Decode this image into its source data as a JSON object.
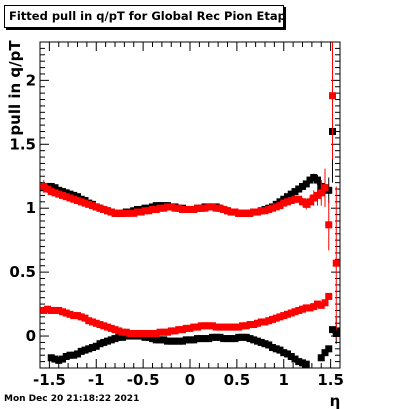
{
  "title": "Fitted pull in q/pT for Global Rec Pion EtapT",
  "timestamp": "Mon Dec 20 21:18:22 2021",
  "colors": {
    "black_series": "#000000",
    "red_series": "#ff0000"
  },
  "chart_data": {
    "type": "scatter",
    "title": "Fitted pull in q/pT for Global Rec Pion EtapT",
    "xlabel": "η",
    "ylabel": "pull in q/pT",
    "xlim": [
      -1.6,
      1.6
    ],
    "ylim": [
      -0.25,
      2.3
    ],
    "grid": false,
    "x_ticks": [
      "-1.5",
      "-1",
      "-0.5",
      "0",
      "0.5",
      "1",
      "1.5"
    ],
    "x_tick_values": [
      -1.5,
      -1,
      -0.5,
      0,
      0.5,
      1,
      1.5
    ],
    "y_ticks": [
      "0",
      "0.5",
      "1",
      "1.5",
      "2"
    ],
    "y_tick_values": [
      0,
      0.5,
      1,
      1.5,
      2
    ],
    "series": [
      {
        "role": "mean",
        "color": "#000000",
        "x": [
          -1.56,
          -1.52,
          -1.48,
          -1.44,
          -1.4,
          -1.36,
          -1.32,
          -1.28,
          -1.24,
          -1.2,
          -1.16,
          -1.12,
          -1.08,
          -1.04,
          -1.0,
          -0.96,
          -0.92,
          -0.88,
          -0.84,
          -0.8,
          -0.76,
          -0.72,
          -0.68,
          -0.64,
          -0.6,
          -0.56,
          -0.52,
          -0.48,
          -0.44,
          -0.4,
          -0.36,
          -0.32,
          -0.28,
          -0.24,
          -0.2,
          -0.16,
          -0.12,
          -0.08,
          -0.04,
          0.0,
          0.04,
          0.08,
          0.12,
          0.16,
          0.2,
          0.24,
          0.28,
          0.32,
          0.36,
          0.4,
          0.44,
          0.48,
          0.52,
          0.56,
          0.6,
          0.64,
          0.68,
          0.72,
          0.76,
          0.8,
          0.84,
          0.88,
          0.92,
          0.96,
          1.0,
          1.04,
          1.08,
          1.12,
          1.16,
          1.2,
          1.24,
          1.28,
          1.32,
          1.36,
          1.4,
          1.44,
          1.48,
          1.52,
          1.56
        ],
        "y": [
          1.16,
          1.17,
          1.17,
          1.16,
          1.14,
          1.13,
          1.12,
          1.11,
          1.1,
          1.09,
          1.07,
          1.06,
          1.04,
          1.03,
          1.01,
          1.0,
          0.99,
          0.98,
          0.97,
          0.96,
          0.96,
          0.96,
          0.97,
          0.97,
          0.98,
          0.99,
          0.99,
          1.0,
          1.0,
          1.01,
          1.02,
          1.02,
          1.02,
          1.02,
          1.01,
          1.01,
          1.0,
          1.0,
          0.99,
          0.99,
          0.99,
          1.0,
          1.0,
          1.01,
          1.01,
          1.01,
          1.01,
          1.0,
          0.99,
          0.98,
          0.97,
          0.97,
          0.96,
          0.96,
          0.96,
          0.96,
          0.97,
          0.97,
          0.98,
          0.99,
          1.0,
          1.01,
          1.03,
          1.05,
          1.07,
          1.09,
          1.11,
          1.13,
          1.15,
          1.17,
          1.19,
          1.22,
          1.24,
          1.22,
          1.17,
          1.16,
          1.14,
          1.6,
          0.04
        ],
        "err": [
          0.03,
          0.02,
          0.02,
          0.01,
          0.01,
          0.01,
          0.01,
          0.01,
          0.01,
          0.01,
          0.01,
          0.01,
          0.01,
          0.01,
          0.01,
          0.01,
          0.01,
          0.01,
          0.01,
          0.01,
          0.01,
          0.01,
          0.01,
          0.01,
          0.01,
          0.01,
          0.01,
          0.01,
          0.01,
          0.01,
          0.01,
          0.01,
          0.01,
          0.01,
          0.01,
          0.01,
          0.01,
          0.01,
          0.01,
          0.01,
          0.01,
          0.01,
          0.01,
          0.01,
          0.01,
          0.01,
          0.01,
          0.01,
          0.01,
          0.01,
          0.01,
          0.01,
          0.01,
          0.01,
          0.01,
          0.01,
          0.01,
          0.01,
          0.01,
          0.01,
          0.01,
          0.01,
          0.01,
          0.01,
          0.01,
          0.01,
          0.01,
          0.01,
          0.01,
          0.01,
          0.01,
          0.02,
          0.03,
          0.04,
          0.05,
          0.06,
          0.1,
          0.4,
          0.1
        ]
      },
      {
        "role": "mean",
        "color": "#ff0000",
        "x": [
          -1.56,
          -1.52,
          -1.48,
          -1.44,
          -1.4,
          -1.36,
          -1.32,
          -1.28,
          -1.24,
          -1.2,
          -1.16,
          -1.12,
          -1.08,
          -1.04,
          -1.0,
          -0.96,
          -0.92,
          -0.88,
          -0.84,
          -0.8,
          -0.76,
          -0.72,
          -0.68,
          -0.64,
          -0.6,
          -0.56,
          -0.52,
          -0.48,
          -0.44,
          -0.4,
          -0.36,
          -0.32,
          -0.28,
          -0.24,
          -0.2,
          -0.16,
          -0.12,
          -0.08,
          -0.04,
          0.0,
          0.04,
          0.08,
          0.12,
          0.16,
          0.2,
          0.24,
          0.28,
          0.32,
          0.36,
          0.4,
          0.44,
          0.48,
          0.52,
          0.56,
          0.6,
          0.64,
          0.68,
          0.72,
          0.76,
          0.8,
          0.84,
          0.88,
          0.92,
          0.96,
          1.0,
          1.04,
          1.08,
          1.12,
          1.16,
          1.2,
          1.24,
          1.28,
          1.32,
          1.36,
          1.4,
          1.44,
          1.48,
          1.52,
          1.56
        ],
        "y": [
          1.17,
          1.15,
          1.13,
          1.12,
          1.11,
          1.1,
          1.09,
          1.08,
          1.07,
          1.06,
          1.05,
          1.04,
          1.03,
          1.02,
          1.01,
          1.0,
          0.99,
          0.98,
          0.97,
          0.96,
          0.96,
          0.96,
          0.96,
          0.96,
          0.96,
          0.97,
          0.97,
          0.98,
          0.98,
          0.99,
          0.99,
          1.0,
          1.0,
          1.01,
          1.01,
          1.0,
          1.0,
          0.99,
          0.99,
          0.99,
          0.99,
          1.0,
          1.0,
          1.0,
          1.01,
          1.01,
          1.0,
          1.0,
          0.99,
          0.98,
          0.97,
          0.97,
          0.96,
          0.96,
          0.96,
          0.96,
          0.97,
          0.97,
          0.98,
          0.98,
          0.99,
          1.0,
          1.01,
          1.02,
          1.04,
          1.05,
          1.06,
          1.07,
          1.07,
          1.05,
          1.03,
          1.05,
          1.08,
          1.1,
          1.12,
          1.16,
          0.87,
          1.88,
          0.57
        ],
        "err": [
          0.05,
          0.03,
          0.02,
          0.02,
          0.01,
          0.01,
          0.01,
          0.01,
          0.01,
          0.01,
          0.01,
          0.01,
          0.01,
          0.01,
          0.01,
          0.01,
          0.01,
          0.01,
          0.01,
          0.01,
          0.01,
          0.01,
          0.01,
          0.01,
          0.01,
          0.01,
          0.01,
          0.01,
          0.01,
          0.01,
          0.01,
          0.01,
          0.01,
          0.01,
          0.01,
          0.01,
          0.01,
          0.01,
          0.01,
          0.01,
          0.01,
          0.01,
          0.01,
          0.01,
          0.01,
          0.01,
          0.01,
          0.01,
          0.01,
          0.01,
          0.01,
          0.01,
          0.01,
          0.01,
          0.01,
          0.01,
          0.01,
          0.01,
          0.01,
          0.01,
          0.01,
          0.01,
          0.01,
          0.01,
          0.01,
          0.01,
          0.02,
          0.02,
          0.02,
          0.03,
          0.04,
          0.05,
          0.06,
          0.08,
          0.1,
          0.15,
          0.2,
          0.5,
          0.6
        ]
      },
      {
        "role": "width",
        "color": "#000000",
        "x": [
          -1.48,
          -1.44,
          -1.4,
          -1.36,
          -1.32,
          -1.28,
          -1.24,
          -1.2,
          -1.16,
          -1.12,
          -1.08,
          -1.04,
          -1.0,
          -0.96,
          -0.92,
          -0.88,
          -0.84,
          -0.8,
          -0.76,
          -0.72,
          -0.68,
          -0.64,
          -0.6,
          -0.56,
          -0.52,
          -0.48,
          -0.44,
          -0.4,
          -0.36,
          -0.32,
          -0.28,
          -0.24,
          -0.2,
          -0.16,
          -0.12,
          -0.08,
          -0.04,
          0.0,
          0.04,
          0.08,
          0.12,
          0.16,
          0.2,
          0.24,
          0.28,
          0.32,
          0.36,
          0.4,
          0.44,
          0.48,
          0.52,
          0.56,
          0.6,
          0.64,
          0.68,
          0.72,
          0.76,
          0.8,
          0.84,
          0.88,
          0.92,
          0.96,
          1.0,
          1.04,
          1.08,
          1.12,
          1.16,
          1.2,
          1.24,
          1.4,
          1.44,
          1.48,
          1.52,
          1.56
        ],
        "y": [
          -0.17,
          -0.18,
          -0.19,
          -0.18,
          -0.16,
          -0.15,
          -0.15,
          -0.14,
          -0.12,
          -0.11,
          -0.1,
          -0.09,
          -0.08,
          -0.06,
          -0.05,
          -0.04,
          -0.03,
          -0.02,
          -0.01,
          -0.01,
          0.0,
          0.0,
          0.0,
          0.0,
          0.0,
          -0.01,
          -0.01,
          -0.02,
          -0.03,
          -0.03,
          -0.03,
          -0.04,
          -0.04,
          -0.04,
          -0.04,
          -0.04,
          -0.03,
          -0.03,
          -0.03,
          -0.02,
          -0.02,
          -0.02,
          -0.02,
          -0.01,
          -0.01,
          -0.01,
          -0.02,
          -0.02,
          -0.02,
          -0.02,
          -0.01,
          -0.01,
          -0.01,
          -0.02,
          -0.03,
          -0.04,
          -0.05,
          -0.06,
          -0.07,
          -0.09,
          -0.1,
          -0.11,
          -0.13,
          -0.14,
          -0.16,
          -0.18,
          -0.2,
          -0.21,
          -0.22,
          -0.17,
          -0.13,
          -0.1,
          0.05,
          0.02
        ]
      },
      {
        "role": "width",
        "color": "#ff0000",
        "x": [
          -1.56,
          -1.52,
          -1.48,
          -1.44,
          -1.4,
          -1.36,
          -1.32,
          -1.28,
          -1.24,
          -1.2,
          -1.16,
          -1.12,
          -1.08,
          -1.04,
          -1.0,
          -0.96,
          -0.92,
          -0.88,
          -0.84,
          -0.8,
          -0.76,
          -0.72,
          -0.68,
          -0.64,
          -0.6,
          -0.56,
          -0.52,
          -0.48,
          -0.44,
          -0.4,
          -0.36,
          -0.32,
          -0.28,
          -0.24,
          -0.2,
          -0.16,
          -0.12,
          -0.08,
          -0.04,
          0.0,
          0.04,
          0.08,
          0.12,
          0.16,
          0.2,
          0.24,
          0.28,
          0.32,
          0.36,
          0.4,
          0.44,
          0.48,
          0.52,
          0.56,
          0.6,
          0.64,
          0.68,
          0.72,
          0.76,
          0.8,
          0.84,
          0.88,
          0.92,
          0.96,
          1.0,
          1.04,
          1.08,
          1.12,
          1.16,
          1.2,
          1.24,
          1.28,
          1.32,
          1.36,
          1.4,
          1.44,
          1.48
        ],
        "y": [
          0.2,
          0.21,
          0.2,
          0.2,
          0.2,
          0.19,
          0.18,
          0.17,
          0.16,
          0.16,
          0.15,
          0.14,
          0.12,
          0.11,
          0.1,
          0.09,
          0.08,
          0.07,
          0.06,
          0.05,
          0.04,
          0.03,
          0.03,
          0.02,
          0.02,
          0.02,
          0.02,
          0.02,
          0.02,
          0.02,
          0.02,
          0.03,
          0.03,
          0.03,
          0.04,
          0.04,
          0.05,
          0.05,
          0.06,
          0.06,
          0.07,
          0.07,
          0.08,
          0.08,
          0.08,
          0.08,
          0.07,
          0.07,
          0.07,
          0.07,
          0.07,
          0.07,
          0.07,
          0.08,
          0.08,
          0.09,
          0.09,
          0.1,
          0.11,
          0.11,
          0.12,
          0.13,
          0.14,
          0.15,
          0.16,
          0.17,
          0.18,
          0.19,
          0.2,
          0.21,
          0.22,
          0.22,
          0.23,
          0.25,
          0.24,
          0.26,
          0.31
        ]
      }
    ]
  }
}
